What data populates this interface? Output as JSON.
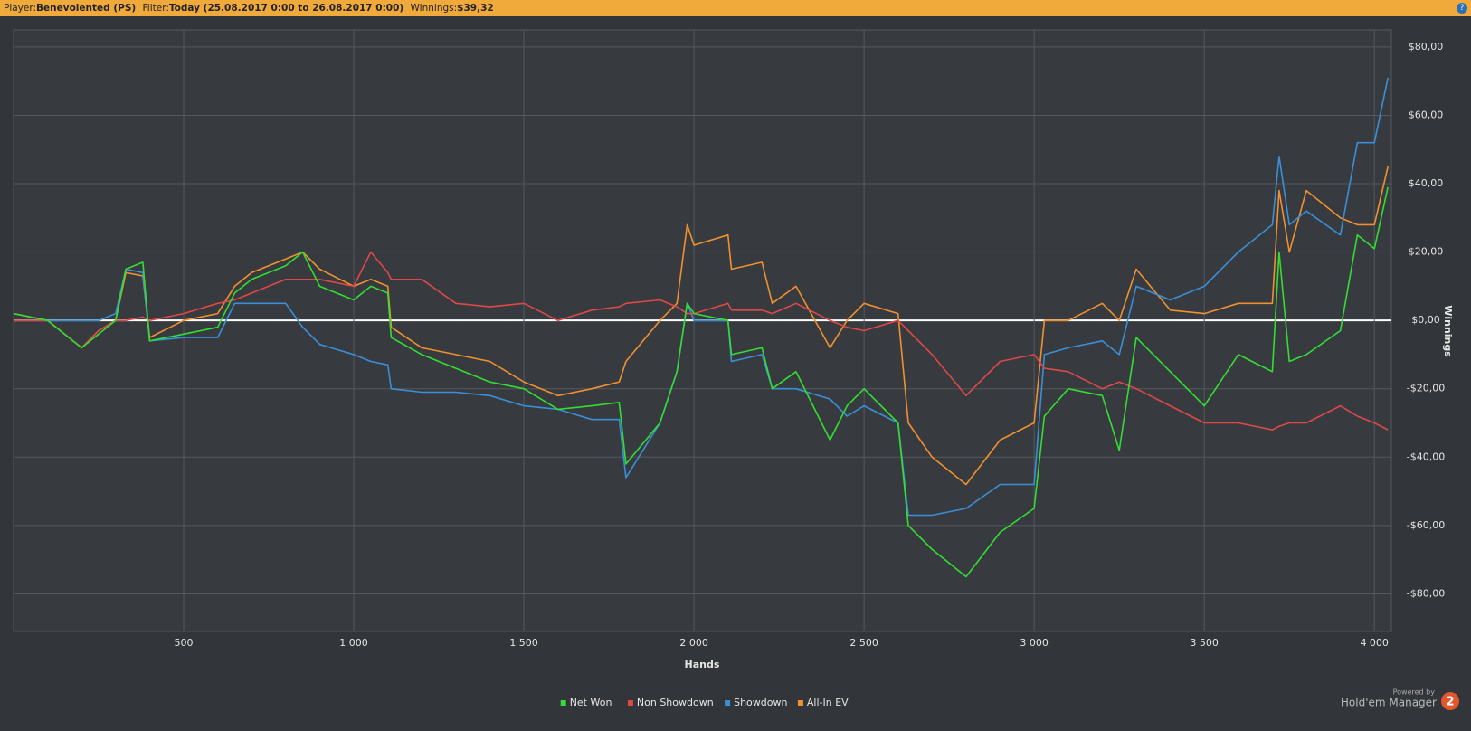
{
  "header": {
    "player_label": "Player:",
    "player": "Benevolented (PS)",
    "filter_label": "Filter:",
    "filter": "Today (25.08.2017 0:00 to 26.08.2017 0:00)",
    "winnings_label": "Winnings:",
    "winnings": "$39,32"
  },
  "branding": {
    "powered_by": "Powered by",
    "product": "Hold'em Manager",
    "version": "2"
  },
  "chart_data": {
    "type": "line",
    "x_label": "Hands",
    "y_label": "Winnings",
    "legend": "bottom",
    "grid": true,
    "xlim": [
      0,
      4050
    ],
    "ylim": [
      -91,
      85
    ],
    "xticks": [
      500,
      {
        "value": 1000,
        "label": "1 000"
      },
      {
        "value": 1500,
        "label": "1 500"
      },
      {
        "value": 2000,
        "label": "2 000"
      },
      {
        "value": 2500,
        "label": "2 500"
      },
      {
        "value": 3000,
        "label": "3 000"
      },
      {
        "value": 3500,
        "label": "3 500"
      },
      {
        "value": 4000,
        "label": "4 000"
      }
    ],
    "yticks": [
      {
        "value": -80,
        "label": "-$80,00"
      },
      {
        "value": -60,
        "label": "-$60,00"
      },
      {
        "value": -40,
        "label": "-$40,00"
      },
      {
        "value": -20,
        "label": "-$20,00"
      },
      {
        "value": 0,
        "label": "$0,00"
      },
      {
        "value": 20,
        "label": "$20,00"
      },
      {
        "value": 40,
        "label": "$40,00"
      },
      {
        "value": 60,
        "label": "$60,00"
      },
      {
        "value": 80,
        "label": "$80,00"
      }
    ],
    "x": [
      0,
      100,
      200,
      250,
      300,
      330,
      380,
      400,
      500,
      600,
      650,
      700,
      800,
      850,
      900,
      1000,
      1050,
      1100,
      1110,
      1200,
      1300,
      1400,
      1500,
      1600,
      1700,
      1780,
      1800,
      1900,
      1950,
      1980,
      2000,
      2100,
      2110,
      2200,
      2230,
      2300,
      2400,
      2450,
      2500,
      2600,
      2630,
      2700,
      2800,
      2900,
      3000,
      3030,
      3100,
      3200,
      3250,
      3300,
      3400,
      3500,
      3600,
      3700,
      3720,
      3750,
      3800,
      3900,
      3950,
      4000,
      4040
    ],
    "series": [
      {
        "name": "Net Won",
        "color": "#33dd33",
        "values": [
          2,
          0,
          -8,
          -4,
          0,
          15,
          17,
          -6,
          -4,
          -2,
          8,
          12,
          16,
          20,
          10,
          6,
          10,
          8,
          -5,
          -10,
          -14,
          -18,
          -20,
          -26,
          -25,
          -24,
          -42,
          -30,
          -15,
          5,
          2,
          0,
          -10,
          -8,
          -20,
          -15,
          -35,
          -25,
          -20,
          -30,
          -60,
          -67,
          -75,
          -62,
          -55,
          -28,
          -20,
          -22,
          -38,
          -5,
          -15,
          -25,
          -10,
          -15,
          20,
          -12,
          -10,
          -3,
          25,
          21,
          39
        ]
      },
      {
        "name": "Non Showdown",
        "color": "#dd4848",
        "values": [
          0,
          0,
          -8,
          -3,
          0,
          0,
          1,
          0,
          2,
          5,
          6,
          8,
          12,
          12,
          12,
          10,
          20,
          14,
          12,
          12,
          5,
          4,
          5,
          0,
          3,
          4,
          5,
          6,
          4,
          2,
          2,
          5,
          3,
          3,
          2,
          5,
          0,
          -2,
          -3,
          0,
          -3,
          -10,
          -22,
          -12,
          -10,
          -14,
          -15,
          -20,
          -18,
          -20,
          -25,
          -30,
          -30,
          -32,
          -31,
          -30,
          -30,
          -25,
          -28,
          -30,
          -32
        ]
      },
      {
        "name": "Showdown",
        "color": "#3a8fd8",
        "values": [
          0,
          0,
          0,
          0,
          2,
          15,
          14,
          -6,
          -5,
          -5,
          5,
          5,
          5,
          -2,
          -7,
          -10,
          -12,
          -13,
          -20,
          -21,
          -21,
          -22,
          -25,
          -26,
          -29,
          -29,
          -46,
          -30,
          -15,
          5,
          0,
          0,
          -12,
          -10,
          -20,
          -20,
          -23,
          -28,
          -25,
          -30,
          -57,
          -57,
          -55,
          -48,
          -48,
          -10,
          -8,
          -6,
          -10,
          10,
          6,
          10,
          20,
          28,
          48,
          28,
          32,
          25,
          52,
          52,
          71
        ]
      },
      {
        "name": "All-In EV",
        "color": "#f09030",
        "values": [
          2,
          0,
          -8,
          -3,
          0,
          14,
          13,
          -5,
          0,
          2,
          10,
          14,
          18,
          20,
          15,
          10,
          12,
          10,
          -2,
          -8,
          -10,
          -12,
          -18,
          -22,
          -20,
          -18,
          -12,
          0,
          5,
          28,
          22,
          25,
          15,
          17,
          5,
          10,
          -8,
          0,
          5,
          2,
          -30,
          -40,
          -48,
          -35,
          -30,
          0,
          0,
          5,
          0,
          15,
          3,
          2,
          5,
          5,
          38,
          20,
          38,
          30,
          28,
          28,
          45
        ]
      }
    ]
  }
}
